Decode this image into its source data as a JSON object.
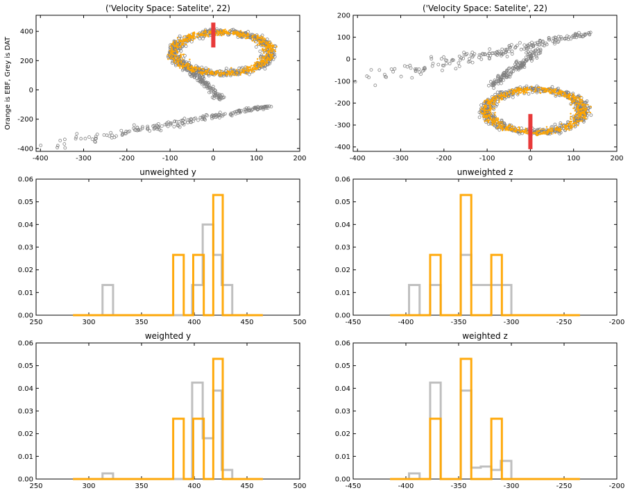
{
  "figure": {
    "ylabel_shared": "Orange is EBF, Grey is DAT"
  },
  "colors": {
    "orange": "#ffa500",
    "grey": "#808080",
    "grey_light": "#bfbfbf",
    "red": "#e83a3a",
    "axis": "#000000"
  },
  "chart_data": [
    {
      "type": "scatter",
      "title": "('Velocity Space: Satelite', 22)",
      "xlabel": "",
      "ylabel": "Orange is EBF, Grey is DAT",
      "xlim": [
        -410,
        200
      ],
      "ylim": [
        -420,
        510
      ],
      "xticks": [
        -400,
        -300,
        -200,
        -100,
        0,
        100,
        200
      ],
      "yticks": [
        -400,
        -200,
        0,
        200,
        400
      ],
      "series": [
        {
          "color": "grey",
          "marker": "open-circle",
          "shape": "figure-eight loop with tail",
          "loop_center": [
            20,
            250
          ],
          "tail_from": [
            -410,
            -400
          ],
          "tail_to": [
            130,
            -110
          ]
        },
        {
          "color": "orange",
          "marker": "dot",
          "shape": "dense loop",
          "loop_center": [
            20,
            270
          ]
        }
      ],
      "marker_bar": {
        "x": 0,
        "y_from": 290,
        "y_to": 460,
        "color": "red"
      }
    },
    {
      "type": "scatter",
      "title": "('Velocity Space: Satelite', 22)",
      "xlabel": "",
      "ylabel": "",
      "xlim": [
        -410,
        200
      ],
      "ylim": [
        -420,
        200
      ],
      "xticks": [
        -400,
        -300,
        -200,
        -100,
        0,
        100,
        200
      ],
      "yticks": [
        -400,
        -300,
        -200,
        -100,
        0,
        100,
        200
      ],
      "series": [
        {
          "color": "grey",
          "marker": "open-circle",
          "shape": "figure-eight loop with tail",
          "loop_center": [
            10,
            -230
          ],
          "tail_from": [
            -400,
            -100
          ],
          "tail_to": [
            140,
            120
          ]
        },
        {
          "color": "orange",
          "marker": "dot",
          "shape": "dense loop",
          "loop_center": [
            10,
            -250
          ]
        }
      ],
      "marker_bar": {
        "x": 0,
        "y_from": -410,
        "y_to": -250,
        "color": "red"
      }
    },
    {
      "type": "histogram",
      "title": "unweighted y",
      "xlabel": "",
      "ylabel": "",
      "xlim": [
        250,
        500
      ],
      "ylim": [
        0,
        0.06
      ],
      "xticks": [
        250,
        300,
        350,
        400,
        450,
        500
      ],
      "yticks": [
        "0.00",
        "0.01",
        "0.02",
        "0.03",
        "0.04",
        "0.05",
        "0.06"
      ],
      "series": [
        {
          "color": "grey_light",
          "range": [
            285,
            465
          ],
          "edges": [
            313,
            323,
            398,
            408,
            418,
            426,
            436
          ],
          "values": [
            0.0133,
            0,
            0.0133,
            0.04,
            0.0266,
            0.0133
          ]
        },
        {
          "color": "orange",
          "range": [
            285,
            465
          ],
          "edges": [
            380,
            390,
            399,
            409,
            418,
            427
          ],
          "values": [
            0.0266,
            0,
            0.0266,
            0,
            0.053
          ]
        }
      ]
    },
    {
      "type": "histogram",
      "title": "unweighted z",
      "xlabel": "",
      "ylabel": "",
      "xlim": [
        -450,
        -200
      ],
      "ylim": [
        0,
        0.06
      ],
      "xticks": [
        -450,
        -400,
        -350,
        -300,
        -250,
        -200
      ],
      "yticks": [
        "0.00",
        "0.01",
        "0.02",
        "0.03",
        "0.04",
        "0.05",
        "0.06"
      ],
      "series": [
        {
          "color": "grey_light",
          "range": [
            -415,
            -235
          ],
          "edges": [
            -397,
            -387,
            -377,
            -367,
            -348,
            -338,
            -329,
            -319,
            -310,
            -300
          ],
          "values": [
            0.0133,
            0,
            0.0133,
            0,
            0.0266,
            0.0133,
            0.0133,
            0.0133,
            0.0133
          ]
        },
        {
          "color": "orange",
          "range": [
            -415,
            -235
          ],
          "edges": [
            -377,
            -367,
            -348,
            -338,
            -319,
            -309
          ],
          "values": [
            0.0266,
            0,
            0.053,
            0,
            0.0266
          ]
        }
      ]
    },
    {
      "type": "histogram",
      "title": "weighted y",
      "xlabel": "",
      "ylabel": "",
      "xlim": [
        250,
        500
      ],
      "ylim": [
        0,
        0.06
      ],
      "xticks": [
        250,
        300,
        350,
        400,
        450,
        500
      ],
      "yticks": [
        "0.00",
        "0.01",
        "0.02",
        "0.03",
        "0.04",
        "0.05",
        "0.06"
      ],
      "series": [
        {
          "color": "grey_light",
          "range": [
            285,
            465
          ],
          "edges": [
            313,
            323,
            398,
            408,
            418,
            426,
            436
          ],
          "values": [
            0.0025,
            0,
            0.0425,
            0.018,
            0.039,
            0.004
          ]
        },
        {
          "color": "orange",
          "range": [
            285,
            465
          ],
          "edges": [
            380,
            390,
            399,
            409,
            418,
            427
          ],
          "values": [
            0.0266,
            0,
            0.0266,
            0,
            0.053
          ]
        }
      ]
    },
    {
      "type": "histogram",
      "title": "weighted z",
      "xlabel": "",
      "ylabel": "",
      "xlim": [
        -450,
        -200
      ],
      "ylim": [
        0,
        0.06
      ],
      "xticks": [
        -450,
        -400,
        -350,
        -300,
        -250,
        -200
      ],
      "yticks": [
        "0.00",
        "0.01",
        "0.02",
        "0.03",
        "0.04",
        "0.05",
        "0.06"
      ],
      "series": [
        {
          "color": "grey_light",
          "range": [
            -415,
            -235
          ],
          "edges": [
            -397,
            -387,
            -377,
            -367,
            -348,
            -338,
            -329,
            -319,
            -310,
            -300
          ],
          "values": [
            0.0025,
            0,
            0.0425,
            0,
            0.039,
            0.005,
            0.0055,
            0.004,
            0.008
          ]
        },
        {
          "color": "orange",
          "range": [
            -415,
            -235
          ],
          "edges": [
            -377,
            -367,
            -348,
            -338,
            -319,
            -309
          ],
          "values": [
            0.0266,
            0,
            0.053,
            0,
            0.0266
          ]
        }
      ]
    }
  ]
}
